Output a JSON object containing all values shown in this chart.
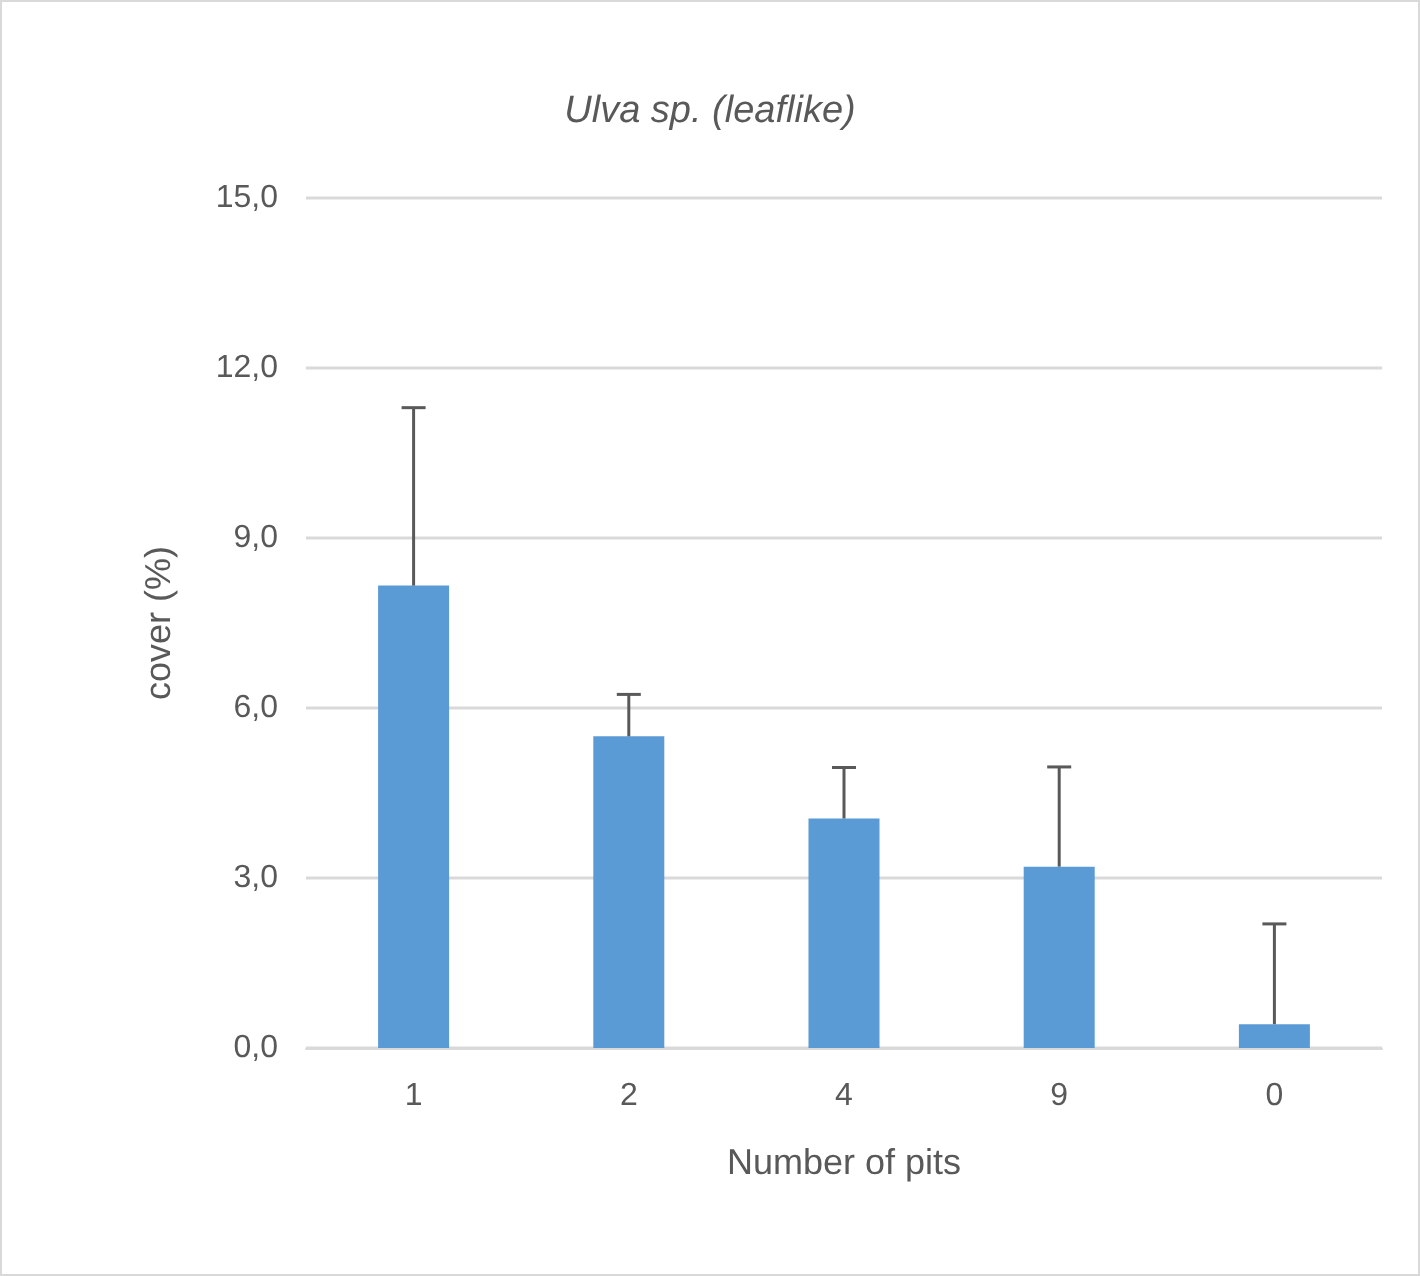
{
  "chart_data": {
    "type": "bar",
    "title": "Ulva sp. (leaflike)",
    "xlabel": "Number of pits",
    "ylabel": "cover (%)",
    "categories": [
      "1",
      "2",
      "4",
      "9",
      "0"
    ],
    "values": [
      8.16,
      5.5,
      4.05,
      3.2,
      0.42
    ],
    "errors": [
      [
        8.16,
        11.3
      ],
      [
        5.5,
        6.24
      ],
      [
        4.05,
        4.95
      ],
      [
        3.2,
        4.96
      ],
      [
        0.42,
        2.19
      ]
    ],
    "color": "#5b9bd5",
    "ylim": [
      0,
      15
    ],
    "yticks": [
      {
        "value": 0,
        "label": "0,0"
      },
      {
        "value": 3,
        "label": "3,0"
      },
      {
        "value": 6,
        "label": "6,0"
      },
      {
        "value": 9,
        "label": "9,0"
      },
      {
        "value": 12,
        "label": "12,0"
      },
      {
        "value": 15,
        "label": "15,0"
      }
    ],
    "grid": true
  }
}
